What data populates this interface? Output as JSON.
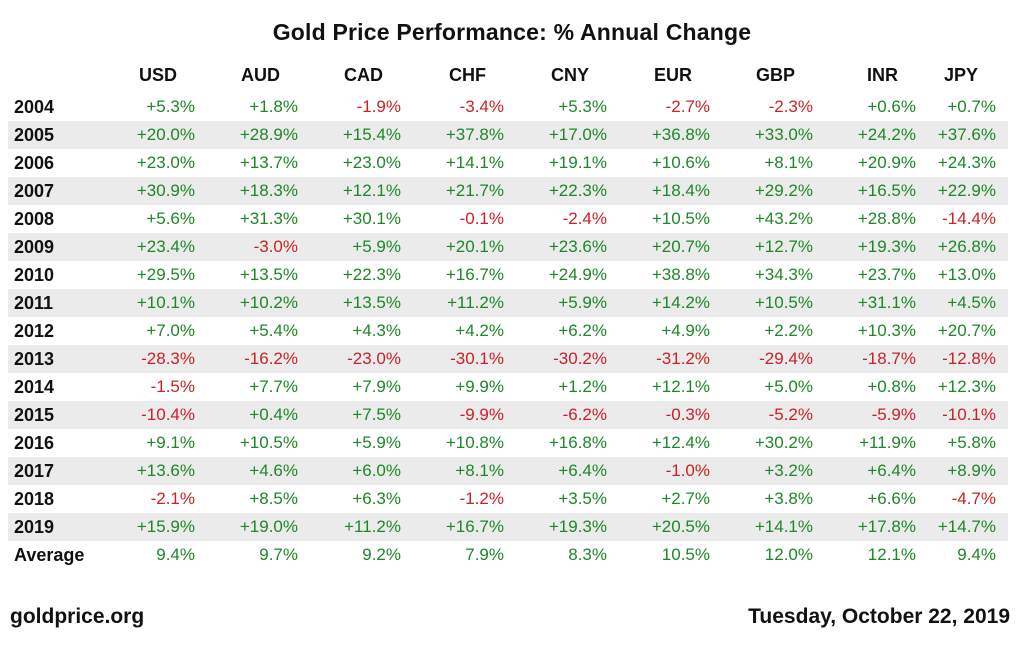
{
  "chart_data": {
    "type": "table",
    "title": "Gold Price Performance: % Annual Change",
    "columns": [
      "USD",
      "AUD",
      "CAD",
      "CHF",
      "CNY",
      "EUR",
      "GBP",
      "INR",
      "JPY"
    ],
    "rows": [
      {
        "label": "2004",
        "values": [
          "+5.3%",
          "+1.8%",
          "-1.9%",
          "-3.4%",
          "+5.3%",
          "-2.7%",
          "-2.3%",
          "+0.6%",
          "+0.7%"
        ]
      },
      {
        "label": "2005",
        "values": [
          "+20.0%",
          "+28.9%",
          "+15.4%",
          "+37.8%",
          "+17.0%",
          "+36.8%",
          "+33.0%",
          "+24.2%",
          "+37.6%"
        ]
      },
      {
        "label": "2006",
        "values": [
          "+23.0%",
          "+13.7%",
          "+23.0%",
          "+14.1%",
          "+19.1%",
          "+10.6%",
          "+8.1%",
          "+20.9%",
          "+24.3%"
        ]
      },
      {
        "label": "2007",
        "values": [
          "+30.9%",
          "+18.3%",
          "+12.1%",
          "+21.7%",
          "+22.3%",
          "+18.4%",
          "+29.2%",
          "+16.5%",
          "+22.9%"
        ]
      },
      {
        "label": "2008",
        "values": [
          "+5.6%",
          "+31.3%",
          "+30.1%",
          "-0.1%",
          "-2.4%",
          "+10.5%",
          "+43.2%",
          "+28.8%",
          "-14.4%"
        ]
      },
      {
        "label": "2009",
        "values": [
          "+23.4%",
          "-3.0%",
          "+5.9%",
          "+20.1%",
          "+23.6%",
          "+20.7%",
          "+12.7%",
          "+19.3%",
          "+26.8%"
        ]
      },
      {
        "label": "2010",
        "values": [
          "+29.5%",
          "+13.5%",
          "+22.3%",
          "+16.7%",
          "+24.9%",
          "+38.8%",
          "+34.3%",
          "+23.7%",
          "+13.0%"
        ]
      },
      {
        "label": "2011",
        "values": [
          "+10.1%",
          "+10.2%",
          "+13.5%",
          "+11.2%",
          "+5.9%",
          "+14.2%",
          "+10.5%",
          "+31.1%",
          "+4.5%"
        ]
      },
      {
        "label": "2012",
        "values": [
          "+7.0%",
          "+5.4%",
          "+4.3%",
          "+4.2%",
          "+6.2%",
          "+4.9%",
          "+2.2%",
          "+10.3%",
          "+20.7%"
        ]
      },
      {
        "label": "2013",
        "values": [
          "-28.3%",
          "-16.2%",
          "-23.0%",
          "-30.1%",
          "-30.2%",
          "-31.2%",
          "-29.4%",
          "-18.7%",
          "-12.8%"
        ]
      },
      {
        "label": "2014",
        "values": [
          "-1.5%",
          "+7.7%",
          "+7.9%",
          "+9.9%",
          "+1.2%",
          "+12.1%",
          "+5.0%",
          "+0.8%",
          "+12.3%"
        ]
      },
      {
        "label": "2015",
        "values": [
          "-10.4%",
          "+0.4%",
          "+7.5%",
          "-9.9%",
          "-6.2%",
          "-0.3%",
          "-5.2%",
          "-5.9%",
          "-10.1%"
        ]
      },
      {
        "label": "2016",
        "values": [
          "+9.1%",
          "+10.5%",
          "+5.9%",
          "+10.8%",
          "+16.8%",
          "+12.4%",
          "+30.2%",
          "+11.9%",
          "+5.8%"
        ]
      },
      {
        "label": "2017",
        "values": [
          "+13.6%",
          "+4.6%",
          "+6.0%",
          "+8.1%",
          "+6.4%",
          "-1.0%",
          "+3.2%",
          "+6.4%",
          "+8.9%"
        ]
      },
      {
        "label": "2018",
        "values": [
          "-2.1%",
          "+8.5%",
          "+6.3%",
          "-1.2%",
          "+3.5%",
          "+2.7%",
          "+3.8%",
          "+6.6%",
          "-4.7%"
        ]
      },
      {
        "label": "2019",
        "values": [
          "+15.9%",
          "+19.0%",
          "+11.2%",
          "+16.7%",
          "+19.3%",
          "+20.5%",
          "+14.1%",
          "+17.8%",
          "+14.7%"
        ]
      },
      {
        "label": "Average",
        "values": [
          "9.4%",
          "9.7%",
          "9.2%",
          "7.9%",
          "8.3%",
          "10.5%",
          "12.0%",
          "12.1%",
          "9.4%"
        ]
      }
    ],
    "layout": {
      "striped_rows": "even",
      "value_alignment": "right"
    }
  },
  "footer": {
    "site": "goldprice.org",
    "date": "Tuesday, October 22, 2019"
  },
  "colors": {
    "positive": "#1e8727",
    "negative": "#cc2028",
    "stripe": "#ebebeb",
    "text": "#111111"
  }
}
